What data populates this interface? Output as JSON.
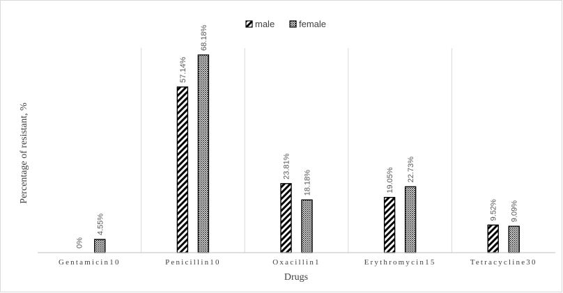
{
  "chart_data": {
    "type": "bar",
    "categories": [
      "Gentamicin10",
      "Penicillin10",
      "Oxacillin1",
      "Erythromycin15",
      "Tetracycline30"
    ],
    "series": [
      {
        "name": "male",
        "values": [
          0,
          57.14,
          23.81,
          19.05,
          9.52
        ],
        "labels": [
          "0%",
          "57.14%",
          "23.81%",
          "19.05%",
          "9.52%"
        ],
        "pattern": "diagonal-hatch"
      },
      {
        "name": "female",
        "values": [
          4.55,
          68.18,
          18.18,
          22.73,
          9.09
        ],
        "labels": [
          "4.55%",
          "68.18%",
          "18.18%",
          "22.73%",
          "9.09%"
        ],
        "pattern": "dotted-grid"
      }
    ],
    "xlabel": "Drugs",
    "ylabel": "Percentage of resistant, %",
    "ylim": [
      0,
      75
    ],
    "legend_position": "top-center",
    "grid": false
  }
}
